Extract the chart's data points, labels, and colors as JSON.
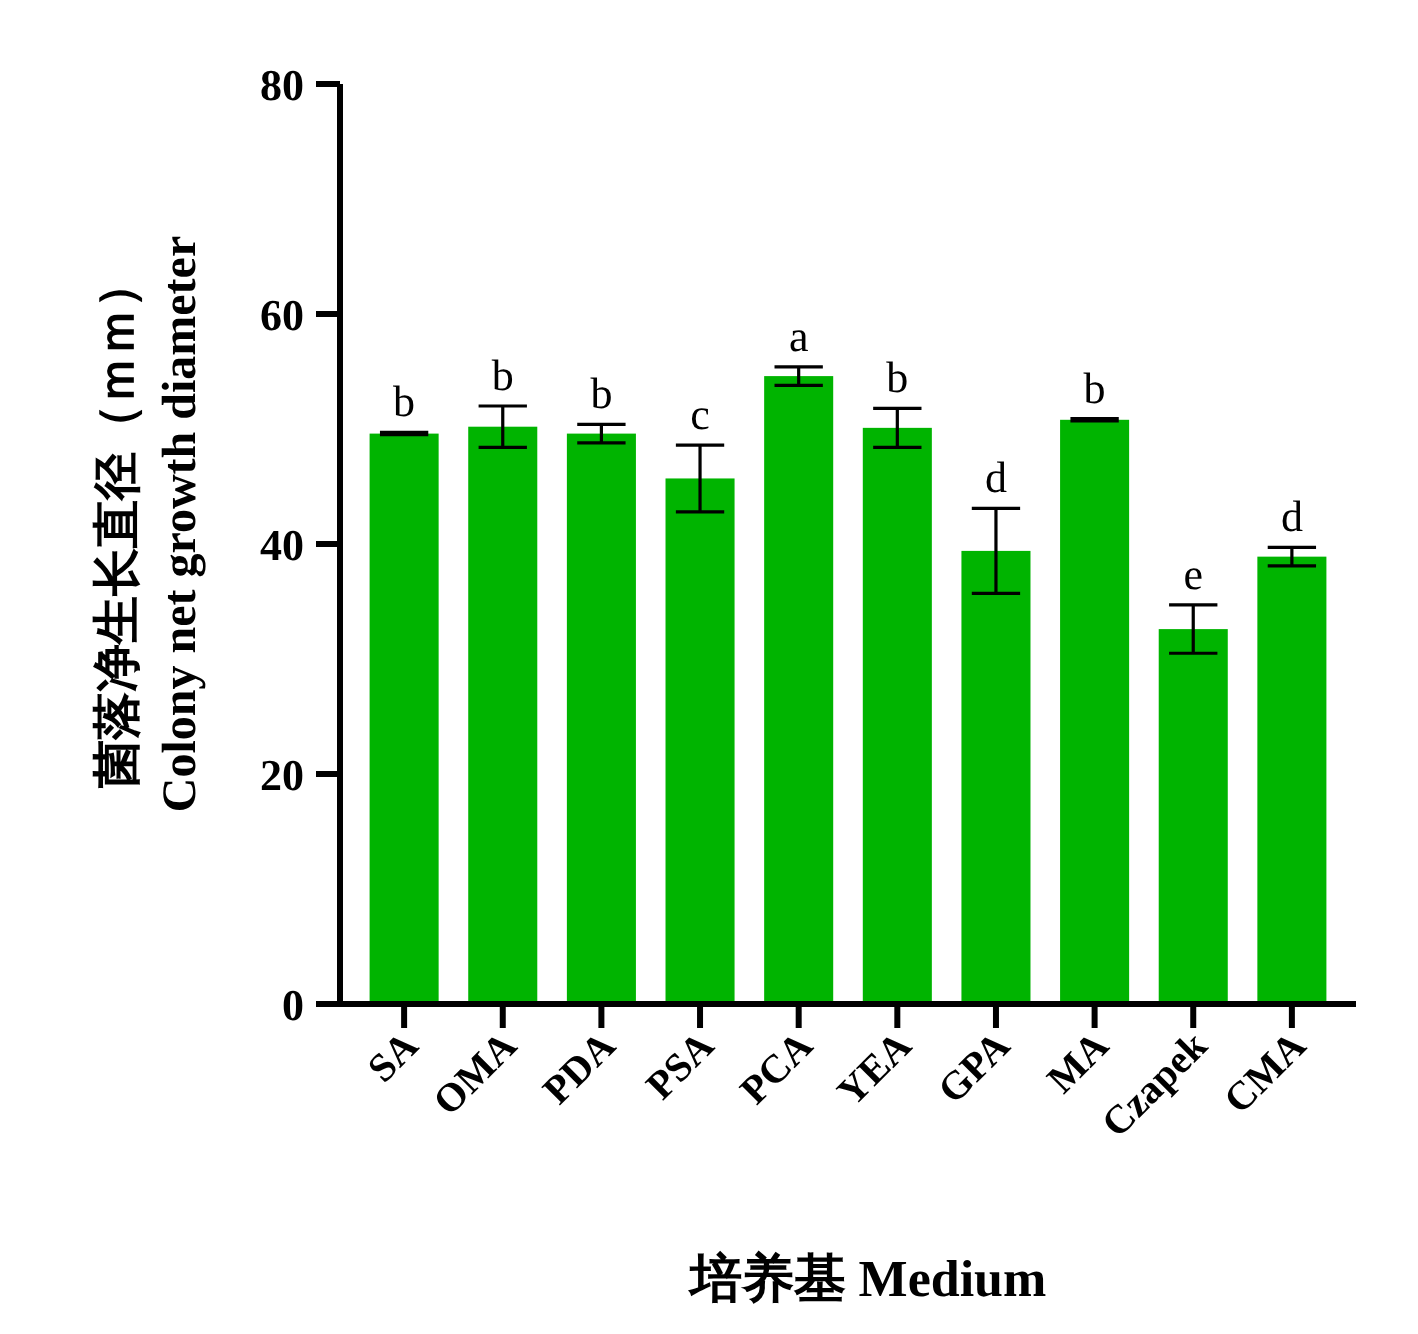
{
  "chart_data": {
    "type": "bar",
    "ylabel": "菌落净生长直径（ｍｍ）\nColony net growth diameter",
    "xlabel": "培养基 Medium",
    "categories": [
      "SA",
      "OMA",
      "PDA",
      "PSA",
      "PCA",
      "YEA",
      "GPA",
      "MA",
      "Czapek",
      "CMA"
    ],
    "values": [
      49.6,
      50.2,
      49.6,
      45.7,
      54.6,
      50.1,
      39.4,
      50.8,
      32.6,
      38.9
    ],
    "errors": [
      0.1,
      1.8,
      0.8,
      2.9,
      0.8,
      1.7,
      3.7,
      0.1,
      2.1,
      0.8
    ],
    "color": "#00b400",
    "ylim": [
      0,
      80
    ],
    "yticks": [
      0,
      20,
      40,
      60,
      80
    ],
    "annotations": [
      {
        "text": "b",
        "x": "SA",
        "y": 49.7
      },
      {
        "text": "b",
        "x": "OMA",
        "y": 52.0
      },
      {
        "text": "b",
        "x": "PDA",
        "y": 50.4
      },
      {
        "text": "c",
        "x": "PSA",
        "y": 48.6
      },
      {
        "text": "a",
        "x": "PCA",
        "y": 55.4
      },
      {
        "text": "b",
        "x": "YEA",
        "y": 51.8
      },
      {
        "text": "d",
        "x": "GPA",
        "y": 43.1
      },
      {
        "text": "b",
        "x": "MA",
        "y": 50.9
      },
      {
        "text": "e",
        "x": "Czapek",
        "y": 34.7
      },
      {
        "text": "d",
        "x": "CMA",
        "y": 39.7
      }
    ]
  }
}
